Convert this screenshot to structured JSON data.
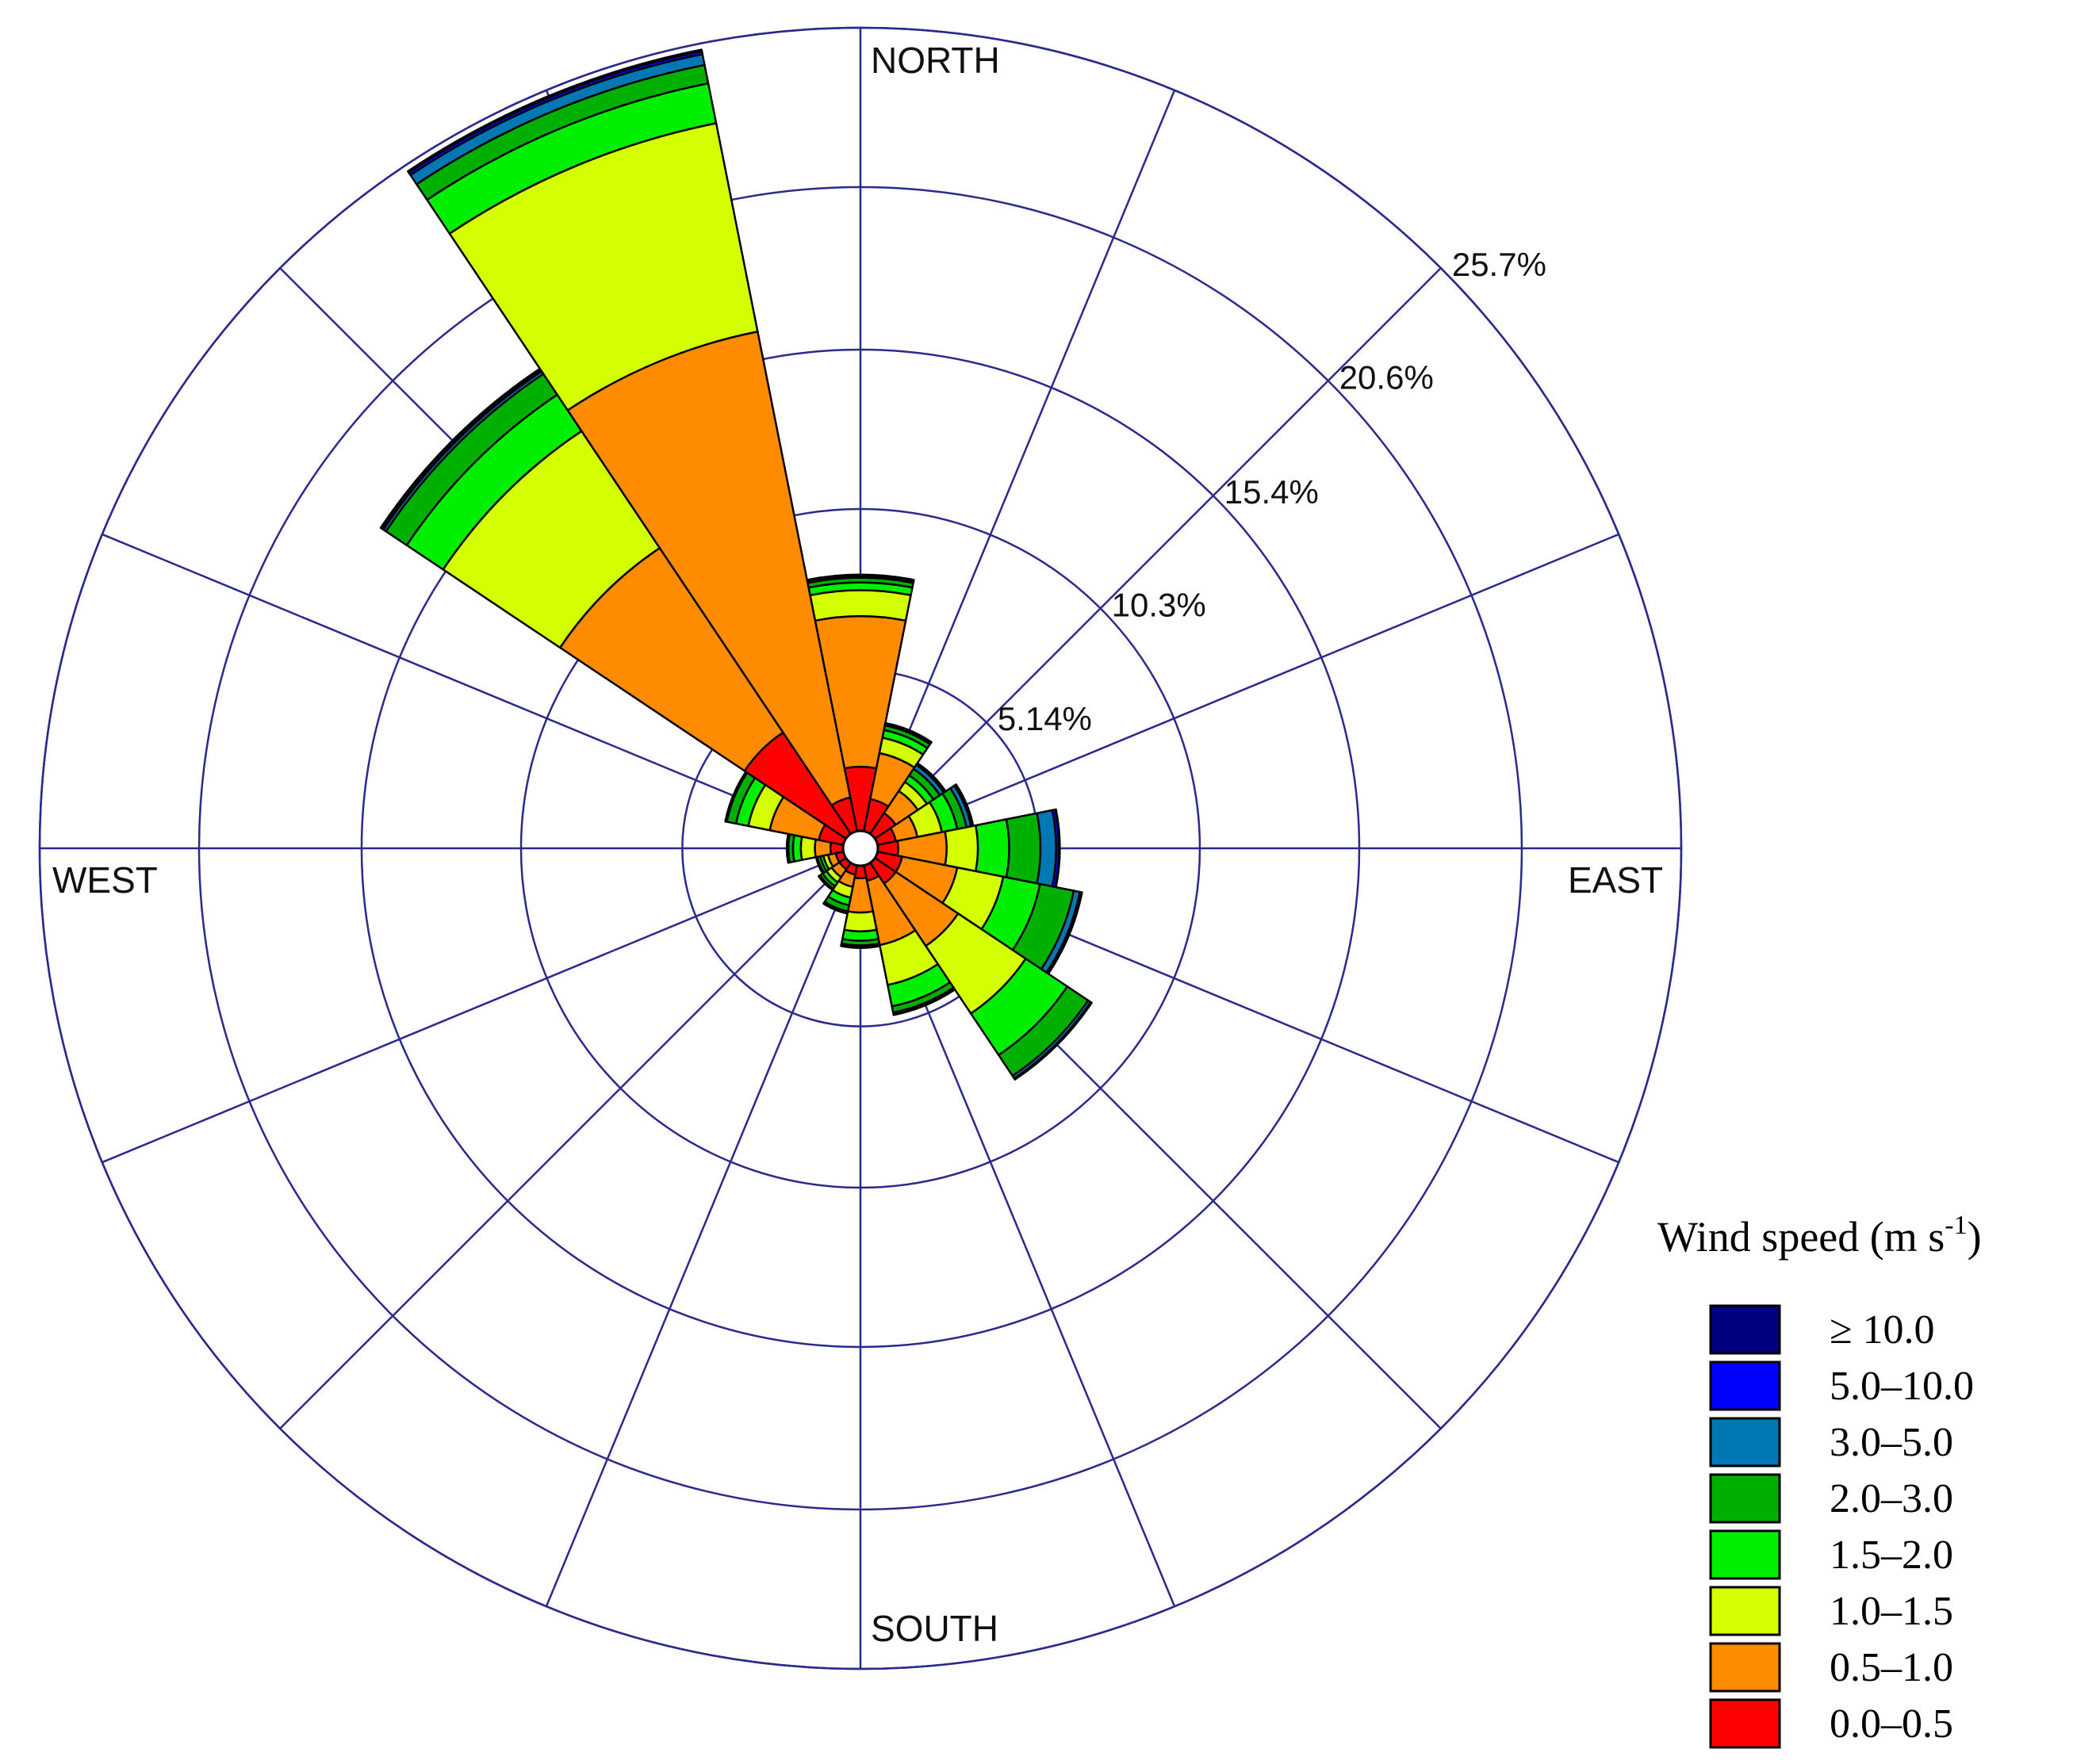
{
  "chart_data": {
    "type": "wind-rose",
    "title": "",
    "directions": [
      "N",
      "NNE",
      "NE",
      "ENE",
      "E",
      "ESE",
      "SE",
      "SSE",
      "S",
      "SSW",
      "SW",
      "WSW",
      "W",
      "WNW",
      "NW",
      "NNW"
    ],
    "compass_labels": {
      "north": "NORTH",
      "east": "EAST",
      "south": "SOUTH",
      "west": "WEST"
    },
    "ring_values": [
      5.14,
      10.3,
      15.4,
      20.6,
      25.7
    ],
    "ring_labels": [
      "5.14%",
      "10.3%",
      "15.4%",
      "20.6%",
      "25.7%"
    ],
    "r_max": 25.7,
    "grid": true,
    "legend": {
      "title": "Wind speed  (m s",
      "title_sup": "-1",
      "title_end": ")",
      "placement": "bottom-right"
    },
    "bins": [
      {
        "label": "0.0–0.5",
        "color": "#ff0000"
      },
      {
        "label": "0.5–1.0",
        "color": "#ff8c00"
      },
      {
        "label": "1.0–1.5",
        "color": "#d4ff00"
      },
      {
        "label": "1.5–2.0",
        "color": "#00ee00"
      },
      {
        "label": "2.0–3.0",
        "color": "#00b000"
      },
      {
        "label": "3.0–5.0",
        "color": "#0078b4"
      },
      {
        "label": "5.0–10.0",
        "color": "#0000ff"
      },
      {
        "label": "≥ 10.0",
        "color": "#000080"
      }
    ],
    "series": [
      {
        "direction": "N",
        "cumulative": [
          2.05,
          6.87,
          7.7,
          7.95,
          8.1,
          8.15,
          8.18,
          8.2
        ]
      },
      {
        "direction": "NNE",
        "cumulative": [
          1.05,
          2.55,
          3.05,
          3.3,
          3.45,
          3.5,
          3.52,
          3.53
        ]
      },
      {
        "direction": "NE",
        "cumulative": [
          0.8,
          1.65,
          2.0,
          2.25,
          2.5,
          2.65,
          2.7,
          2.72
        ]
      },
      {
        "direction": "ENE",
        "cumulative": [
          0.6,
          1.3,
          2.1,
          2.6,
          2.9,
          3.05,
          3.1,
          3.12
        ]
      },
      {
        "direction": "E",
        "cumulative": [
          0.65,
          2.2,
          3.2,
          4.2,
          5.2,
          5.7,
          5.8,
          5.82
        ]
      },
      {
        "direction": "ESE",
        "cumulative": [
          0.8,
          2.6,
          4.1,
          5.3,
          6.4,
          6.6,
          6.65,
          6.67
        ]
      },
      {
        "direction": "SE",
        "cumulative": [
          0.8,
          3.2,
          5.8,
          7.4,
          8.2,
          8.3,
          8.32,
          8.34
        ]
      },
      {
        "direction": "SSE",
        "cumulative": [
          0.5,
          2.6,
          3.9,
          4.6,
          4.8,
          4.85,
          4.87,
          4.88
        ]
      },
      {
        "direction": "S",
        "cumulative": [
          0.4,
          1.5,
          2.1,
          2.4,
          2.55,
          2.6,
          2.62,
          2.63
        ]
      },
      {
        "direction": "SSW",
        "cumulative": [
          0.3,
          0.7,
          1.05,
          1.3,
          1.5,
          1.55,
          1.56,
          1.57
        ]
      },
      {
        "direction": "SW",
        "cumulative": [
          0.25,
          0.55,
          0.75,
          0.9,
          1.0,
          1.03,
          1.04,
          1.05
        ]
      },
      {
        "direction": "WSW",
        "cumulative": [
          0.25,
          0.5,
          0.65,
          0.75,
          0.85,
          0.87,
          0.88,
          0.89
        ]
      },
      {
        "direction": "W",
        "cumulative": [
          0.4,
          0.9,
          1.35,
          1.6,
          1.75,
          1.78,
          1.79,
          1.8
        ]
      },
      {
        "direction": "WNW",
        "cumulative": [
          0.8,
          2.4,
          3.1,
          3.5,
          3.8,
          3.83,
          3.84,
          3.85
        ]
      },
      {
        "direction": "NW",
        "cumulative": [
          3.9,
          11.0,
          15.5,
          16.9,
          17.7,
          17.8,
          17.85,
          17.9
        ]
      },
      {
        "direction": "NNW",
        "cumulative": [
          1.1,
          16.3,
          23.1,
          24.4,
          25.0,
          25.35,
          25.45,
          25.5
        ]
      }
    ]
  }
}
